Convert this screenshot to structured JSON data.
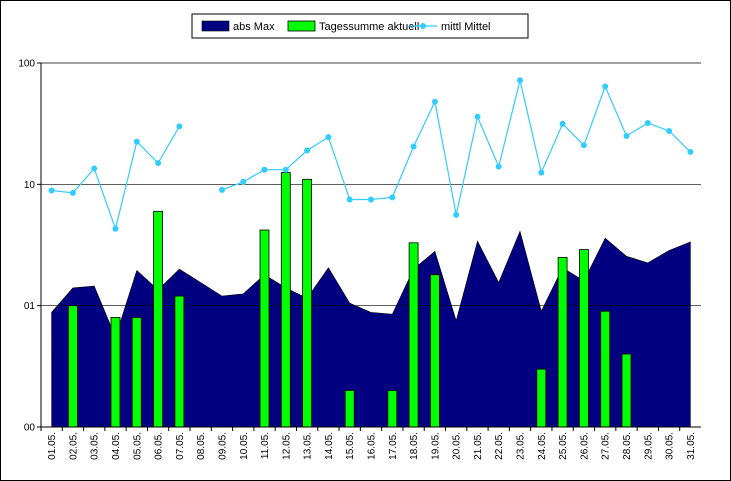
{
  "chart_data": {
    "type": "line",
    "title": "",
    "xlabel": "",
    "ylabel": "",
    "y_scale": "log",
    "ylim": [
      0.1,
      100
    ],
    "yticks": [
      {
        "value": 0.1,
        "label": "00"
      },
      {
        "value": 1,
        "label": "01"
      },
      {
        "value": 10,
        "label": "10"
      },
      {
        "value": 100,
        "label": "100"
      }
    ],
    "grid": {
      "horizontal": true,
      "vertical": false
    },
    "legend": {
      "position": "top-center"
    },
    "categories": [
      "01.05.",
      "02.05.",
      "03.05.",
      "04.05.",
      "05.05.",
      "06.05.",
      "07.05.",
      "08.05.",
      "09.05.",
      "10.05.",
      "11.05.",
      "12.05.",
      "13.05.",
      "14.05.",
      "15.05.",
      "16.05.",
      "17.05.",
      "18.05.",
      "19.05.",
      "20.05.",
      "21.05.",
      "22.05.",
      "23.05.",
      "24.05.",
      "25.05.",
      "26.05.",
      "27.05.",
      "28.05.",
      "29.05.",
      "30.05.",
      "31.05."
    ],
    "series": [
      {
        "name": "abs Max",
        "type": "area",
        "color": "#000080",
        "values": [
          0.88,
          1.4,
          1.45,
          0.55,
          1.95,
          1.35,
          2.0,
          1.55,
          1.2,
          1.25,
          1.8,
          1.4,
          1.15,
          2.05,
          1.05,
          0.88,
          0.85,
          2.0,
          2.8,
          0.75,
          3.4,
          1.55,
          4.1,
          0.9,
          2.05,
          1.6,
          3.6,
          2.55,
          2.25,
          2.85,
          3.35
        ]
      },
      {
        "name": "Tagessumme aktuell",
        "type": "bar",
        "color": "#00ff00",
        "values": [
          null,
          1.0,
          null,
          0.8,
          0.8,
          6.0,
          1.2,
          null,
          null,
          null,
          4.2,
          12.5,
          11.0,
          null,
          0.2,
          null,
          0.2,
          3.3,
          1.8,
          null,
          null,
          null,
          null,
          0.3,
          2.5,
          2.9,
          0.9,
          0.4,
          null,
          null,
          null
        ]
      },
      {
        "name": "mittl Mittel",
        "type": "line",
        "color": "#33ccff",
        "values": [
          8.9,
          8.5,
          13.5,
          4.3,
          22.5,
          15.0,
          30.0,
          null,
          9.0,
          10.5,
          13.2,
          13.2,
          19.0,
          24.5,
          7.5,
          7.5,
          7.8,
          20.5,
          48.0,
          5.6,
          36.0,
          14.0,
          72.0,
          12.5,
          31.5,
          21.0,
          64.0,
          25.0,
          32.0,
          27.5,
          18.5
        ]
      }
    ]
  }
}
